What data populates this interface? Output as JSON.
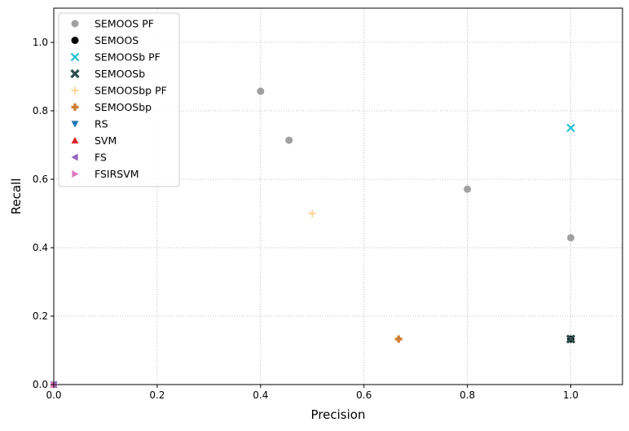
{
  "chart_data": {
    "type": "scatter",
    "xlabel": "Precision",
    "ylabel": "Recall",
    "xlim": [
      0,
      1.1
    ],
    "ylim": [
      0,
      1.1
    ],
    "xticks": [
      "0.0",
      "0.2",
      "0.4",
      "0.6",
      "0.8",
      "1.0"
    ],
    "yticks": [
      "0.0",
      "0.2",
      "0.4",
      "0.6",
      "0.8",
      "1.0"
    ],
    "grid": true,
    "legend_position": "top-left",
    "series": [
      {
        "name": "SEMOOS PF",
        "marker": "circle",
        "color": "#a0a0a0",
        "points": [
          [
            0.4,
            0.857
          ],
          [
            0.455,
            0.714
          ],
          [
            0.8,
            0.571
          ],
          [
            1.0,
            0.429
          ]
        ]
      },
      {
        "name": "SEMOOS",
        "marker": "circle",
        "color": "#000000",
        "points": [
          [
            1.0,
            0.133
          ]
        ]
      },
      {
        "name": "SEMOOSb PF",
        "marker": "x",
        "color": "#17becf",
        "points": [
          [
            1.0,
            0.75
          ]
        ]
      },
      {
        "name": "SEMOOSb",
        "marker": "X",
        "color": "#2f4f4f",
        "points": [
          [
            1.0,
            0.133
          ]
        ]
      },
      {
        "name": "SEMOOSbp PF",
        "marker": "plus",
        "color": "#ffd39b",
        "points": [
          [
            0.5,
            0.5
          ]
        ]
      },
      {
        "name": "SEMOOSbp",
        "marker": "P",
        "color": "#cd7f32",
        "points": [
          [
            0.667,
            0.133
          ]
        ]
      },
      {
        "name": "RS",
        "marker": "triangle-down",
        "color": "#1f77b4",
        "points": [
          [
            0.0,
            0.0
          ]
        ]
      },
      {
        "name": "SVM",
        "marker": "triangle-up",
        "color": "#d62728",
        "points": [
          [
            0.0,
            0.0
          ]
        ]
      },
      {
        "name": "FS",
        "marker": "triangle-left",
        "color": "#9467bd",
        "points": [
          [
            0.0,
            0.0
          ]
        ]
      },
      {
        "name": "FSIRSVM",
        "marker": "triangle-right",
        "color": "#e377c2",
        "points": [
          [
            0.0,
            0.0
          ]
        ]
      }
    ]
  }
}
